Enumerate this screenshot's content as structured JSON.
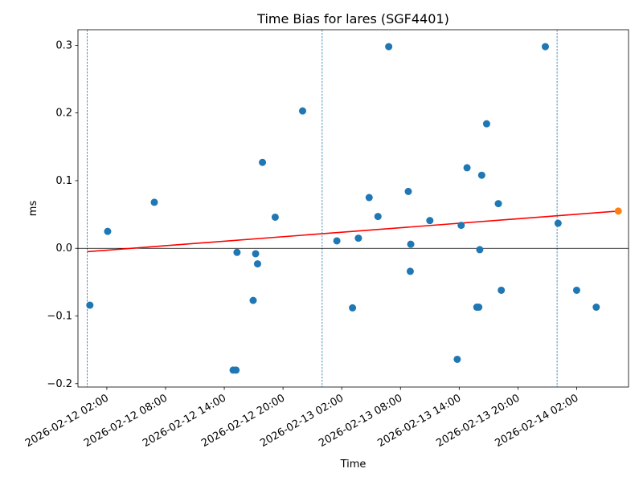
{
  "chart_data": {
    "type": "scatter",
    "title": "Time Bias for lares (SGF4401)",
    "xlabel": "Time",
    "ylabel": "ms",
    "xlim": [
      "2026-02-11 23:03",
      "2026-02-14 07:18"
    ],
    "ylim": [
      -0.205,
      0.323
    ],
    "grid": false,
    "x_ticks": [
      "2026-02-12 02:00",
      "2026-02-12 08:00",
      "2026-02-12 14:00",
      "2026-02-12 20:00",
      "2026-02-13 02:00",
      "2026-02-13 08:00",
      "2026-02-13 14:00",
      "2026-02-13 20:00",
      "2026-02-14 02:00"
    ],
    "y_ticks": [
      -0.2,
      -0.1,
      0.0,
      0.1,
      0.2,
      0.3
    ],
    "y_tick_labels": [
      "−0.2",
      "−0.1",
      "0.0",
      "0.1",
      "0.2",
      "0.3"
    ],
    "colors": {
      "points": "#1f77b4",
      "latest_point": "#ff7f0e",
      "fit_line": "#ff0000",
      "day_lines": "#1f77b4",
      "zero_line": "#000000"
    },
    "day_boundaries": [
      "2026-02-12 00:00",
      "2026-02-13 00:00",
      "2026-02-14 00:00"
    ],
    "zero_line": 0.0,
    "points": [
      {
        "x": "2026-02-12 00:16",
        "y": -0.084
      },
      {
        "x": "2026-02-12 02:05",
        "y": 0.025
      },
      {
        "x": "2026-02-12 06:51",
        "y": 0.068
      },
      {
        "x": "2026-02-12 14:54",
        "y": -0.18
      },
      {
        "x": "2026-02-12 15:12",
        "y": -0.18
      },
      {
        "x": "2026-02-12 15:18",
        "y": -0.006
      },
      {
        "x": "2026-02-12 16:57",
        "y": -0.077
      },
      {
        "x": "2026-02-12 17:12",
        "y": -0.008
      },
      {
        "x": "2026-02-12 17:24",
        "y": -0.023
      },
      {
        "x": "2026-02-12 17:54",
        "y": 0.127
      },
      {
        "x": "2026-02-12 19:12",
        "y": 0.046
      },
      {
        "x": "2026-02-12 22:00",
        "y": 0.203
      },
      {
        "x": "2026-02-13 01:30",
        "y": 0.011
      },
      {
        "x": "2026-02-13 03:06",
        "y": -0.088
      },
      {
        "x": "2026-02-13 03:42",
        "y": 0.015
      },
      {
        "x": "2026-02-13 04:48",
        "y": 0.075
      },
      {
        "x": "2026-02-13 05:42",
        "y": 0.047
      },
      {
        "x": "2026-02-13 06:48",
        "y": 0.298
      },
      {
        "x": "2026-02-13 08:48",
        "y": 0.084
      },
      {
        "x": "2026-02-13 09:00",
        "y": -0.034
      },
      {
        "x": "2026-02-13 09:03",
        "y": 0.006
      },
      {
        "x": "2026-02-13 11:00",
        "y": 0.041
      },
      {
        "x": "2026-02-13 13:48",
        "y": -0.164
      },
      {
        "x": "2026-02-13 14:12",
        "y": 0.034
      },
      {
        "x": "2026-02-13 14:48",
        "y": 0.119
      },
      {
        "x": "2026-02-13 15:48",
        "y": -0.087
      },
      {
        "x": "2026-02-13 16:00",
        "y": -0.087
      },
      {
        "x": "2026-02-13 16:06",
        "y": -0.002
      },
      {
        "x": "2026-02-13 16:18",
        "y": 0.108
      },
      {
        "x": "2026-02-13 16:48",
        "y": 0.184
      },
      {
        "x": "2026-02-13 18:00",
        "y": 0.066
      },
      {
        "x": "2026-02-13 18:18",
        "y": -0.062
      },
      {
        "x": "2026-02-13 22:48",
        "y": 0.298
      },
      {
        "x": "2026-02-14 00:06",
        "y": 0.037
      },
      {
        "x": "2026-02-14 02:00",
        "y": -0.062
      },
      {
        "x": "2026-02-14 04:00",
        "y": -0.087
      }
    ],
    "latest_point": {
      "x": "2026-02-14 06:15",
      "y": 0.055
    },
    "fit_line": {
      "start": {
        "x": "2026-02-12 00:00",
        "y": -0.005
      },
      "end": {
        "x": "2026-02-14 06:15",
        "y": 0.055
      }
    }
  }
}
